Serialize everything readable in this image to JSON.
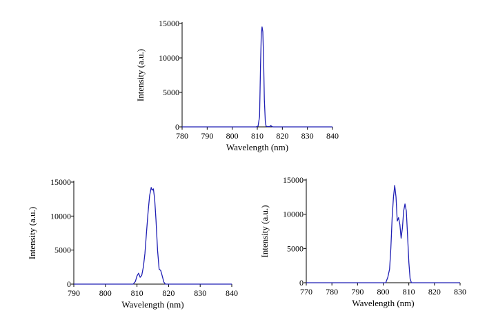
{
  "chart_data": [
    {
      "type": "line",
      "title": "",
      "xlabel": "Wavelength (nm)",
      "ylabel": "Intensity (a.u.)",
      "xlim": [
        780,
        840
      ],
      "ylim": [
        0,
        15000
      ],
      "xticks": [
        780,
        790,
        800,
        810,
        820,
        830,
        840
      ],
      "yticks": [
        0,
        5000,
        10000,
        15000
      ],
      "grid": false,
      "series": [
        {
          "color": "#1f1fb4",
          "x": [
            780,
            809.5,
            810.3,
            810.9,
            811.3,
            811.6,
            811.9,
            812.2,
            812.5,
            812.8,
            813.2,
            813.5,
            814.0,
            815.0,
            815.4,
            815.8,
            816.3,
            840
          ],
          "y": [
            0,
            0,
            100,
            1500,
            9000,
            13500,
            14500,
            13800,
            10000,
            4000,
            800,
            100,
            50,
            50,
            200,
            50,
            0,
            0
          ]
        }
      ]
    },
    {
      "type": "line",
      "title": "",
      "xlabel": "Wavelength (nm)",
      "ylabel": "Intensity (a.u.)",
      "xlim": [
        790,
        840
      ],
      "ylim": [
        0,
        15000
      ],
      "xticks": [
        790,
        800,
        810,
        820,
        830,
        840
      ],
      "yticks": [
        0,
        5000,
        10000,
        15000
      ],
      "grid": false,
      "series": [
        {
          "color": "#1f1fb4",
          "x": [
            790,
            808.8,
            809.5,
            810.0,
            810.5,
            811.0,
            811.5,
            812.0,
            812.5,
            813.0,
            813.5,
            814.0,
            814.5,
            814.8,
            815.2,
            815.6,
            816.0,
            816.5,
            817.0,
            817.5,
            818.0,
            818.5,
            819.0,
            840
          ],
          "y": [
            0,
            0,
            400,
            1200,
            1600,
            1000,
            1300,
            2500,
            4500,
            7500,
            10500,
            13000,
            14200,
            13800,
            14000,
            12500,
            9500,
            5000,
            2200,
            2000,
            1200,
            300,
            0,
            0
          ]
        }
      ]
    },
    {
      "type": "line",
      "title": "",
      "xlabel": "Wavelength (nm)",
      "ylabel": "Intensity (a.u.)",
      "xlim": [
        770,
        830
      ],
      "ylim": [
        0,
        15000
      ],
      "xticks": [
        770,
        780,
        790,
        800,
        810,
        820,
        830
      ],
      "yticks": [
        0,
        5000,
        10000,
        15000
      ],
      "grid": false,
      "series": [
        {
          "color": "#1f1fb4",
          "x": [
            770,
            801.0,
            801.8,
            802.5,
            803.0,
            803.5,
            804.0,
            804.5,
            805.0,
            805.5,
            806.0,
            806.5,
            807.0,
            807.5,
            808.0,
            808.5,
            809.0,
            809.5,
            810.0,
            810.5,
            811.0,
            830
          ],
          "y": [
            0,
            0,
            800,
            2000,
            5000,
            9500,
            12500,
            14200,
            12500,
            9000,
            9500,
            8500,
            6500,
            8000,
            10500,
            11500,
            10500,
            7000,
            3000,
            600,
            0,
            0
          ]
        }
      ]
    }
  ]
}
